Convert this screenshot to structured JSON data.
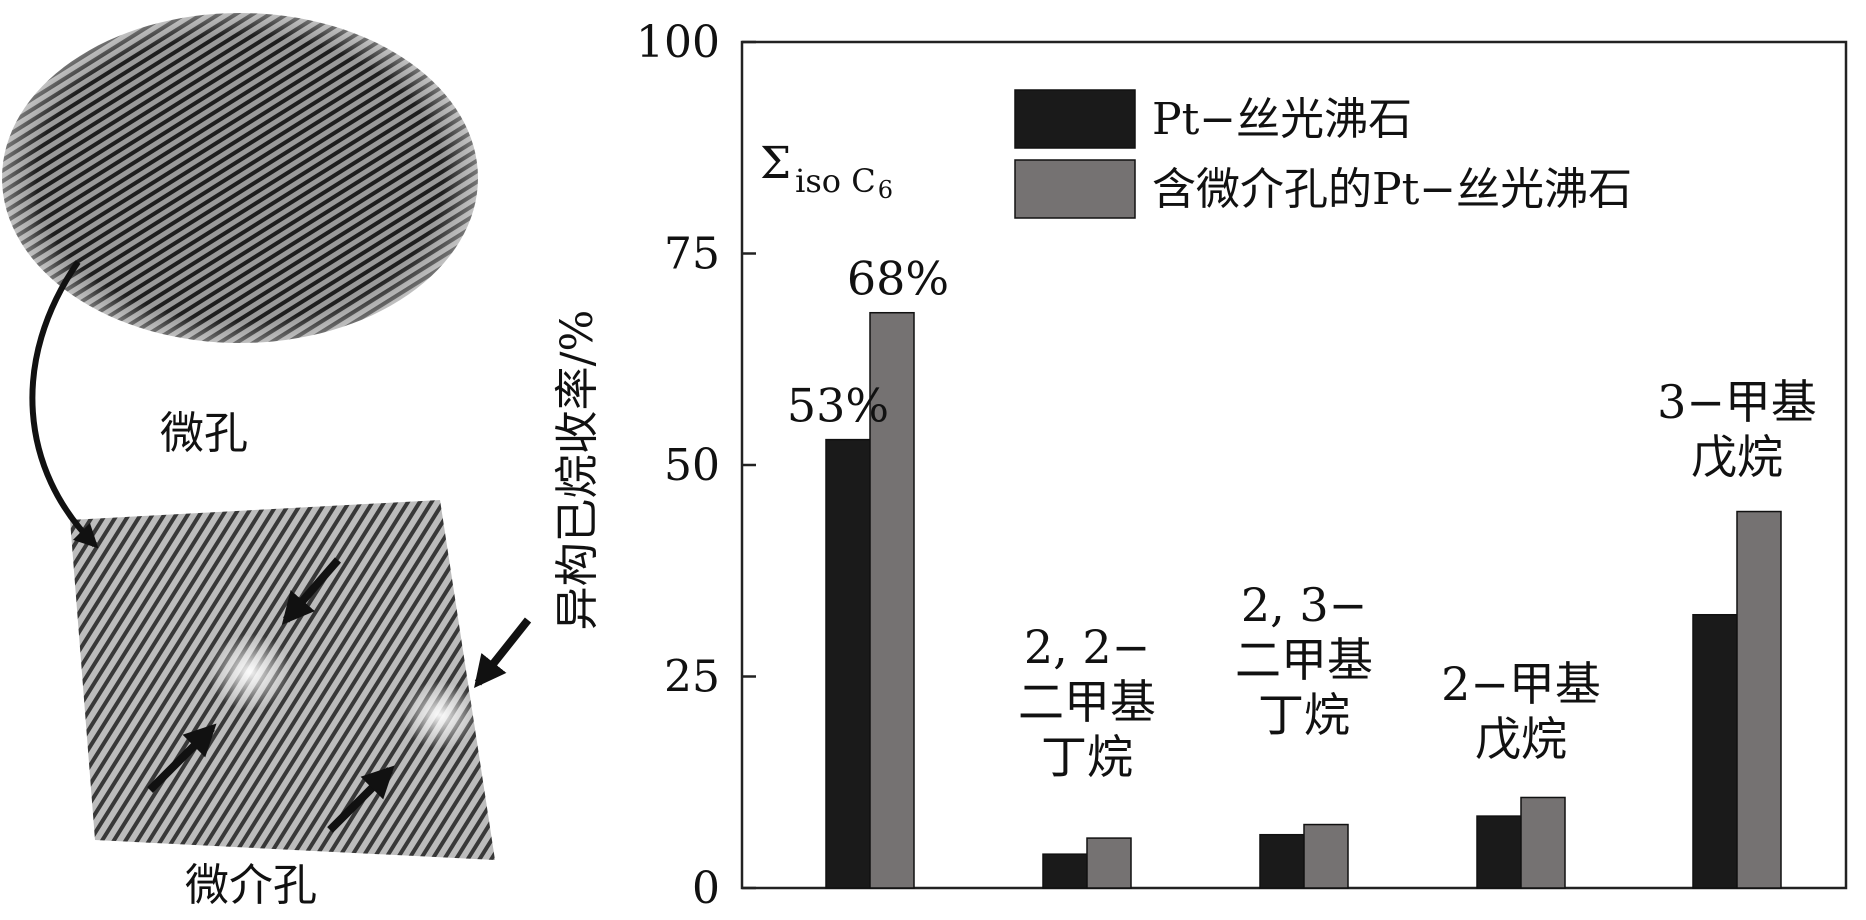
{
  "micrographs": {
    "top_label": "微孔",
    "bottom_label": "微介孔"
  },
  "chart_data": {
    "type": "bar",
    "ylabel": "异构已烷收率/%",
    "ylim": [
      0,
      100
    ],
    "yticks": [
      0,
      25,
      50,
      75,
      100
    ],
    "grid": false,
    "legend_position": "top-right",
    "categories": [
      {
        "lines": [
          "Σ",
          "iso C",
          "6"
        ]
      },
      {
        "lines": [
          "2, 2−",
          "二甲基",
          "丁烷"
        ]
      },
      {
        "lines": [
          "2, 3−",
          "二甲基",
          "丁烷"
        ]
      },
      {
        "lines": [
          "2−甲基",
          "戊烷"
        ]
      },
      {
        "lines": [
          "3−甲基",
          "戊烷"
        ]
      }
    ],
    "series": [
      {
        "name": "Pt−丝光沸石",
        "color": "#1a1a1a",
        "values": [
          53,
          4,
          6.3,
          8.5,
          32.3
        ]
      },
      {
        "name": "含微介孔的Pt−丝光沸石",
        "color": "#757272",
        "values": [
          68,
          5.9,
          7.5,
          10.7,
          44.5
        ]
      }
    ],
    "data_labels": [
      {
        "series": 0,
        "category": 0,
        "text": "53%"
      },
      {
        "series": 1,
        "category": 0,
        "text": "68%"
      }
    ]
  }
}
